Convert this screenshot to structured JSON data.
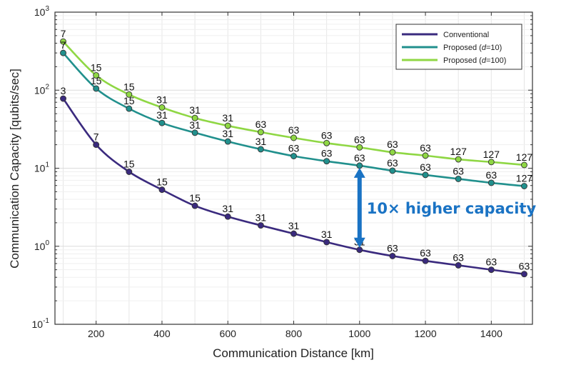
{
  "chart_data": {
    "type": "line",
    "xlabel": "Communication Distance [km]",
    "ylabel": "Communication Capacity  [qubits/sec]",
    "xlim": [
      75,
      1525
    ],
    "ylim_log10": [
      -1,
      3
    ],
    "y_scale": "log",
    "grid": true,
    "legend_position": "top-right",
    "x_ticks": [
      200,
      400,
      600,
      800,
      1000,
      1200,
      1400
    ],
    "x_tick_labels": [
      "200",
      "400",
      "600",
      "800",
      "1000",
      "1200",
      "1400"
    ],
    "y_ticks": [
      {
        "base": "10",
        "exp": "-1",
        "value": 0.1
      },
      {
        "base": "10",
        "exp": "0",
        "value": 1
      },
      {
        "base": "10",
        "exp": "1",
        "value": 10
      },
      {
        "base": "10",
        "exp": "2",
        "value": 100
      },
      {
        "base": "10",
        "exp": "3",
        "value": 1000
      }
    ],
    "x": [
      100,
      200,
      300,
      400,
      500,
      600,
      700,
      800,
      900,
      1000,
      1100,
      1200,
      1300,
      1400,
      1500
    ],
    "series": [
      {
        "name": "Conventional",
        "color": "#3a2a7e",
        "values": [
          78,
          20,
          9,
          5.3,
          3.3,
          2.4,
          1.85,
          1.45,
          1.13,
          0.9,
          0.75,
          0.65,
          0.57,
          0.5,
          0.44
        ],
        "point_labels": [
          "3",
          "7",
          "15",
          "15",
          "15",
          "31",
          "31",
          "31",
          "31",
          "31",
          "63",
          "63",
          "63",
          "63",
          "63"
        ]
      },
      {
        "name": "Proposed (d=10)",
        "color": "#21908d",
        "values": [
          300,
          105,
          58,
          38,
          28.5,
          22,
          17.5,
          14.3,
          12.3,
          10.8,
          9.3,
          8.2,
          7.3,
          6.5,
          5.9
        ],
        "point_labels": [
          "7",
          "15",
          "15",
          "31",
          "31",
          "31",
          "31",
          "63",
          "63",
          "63",
          "63",
          "63",
          "63",
          "63",
          "127"
        ]
      },
      {
        "name": "Proposed (d=100)",
        "color": "#8fd744",
        "values": [
          420,
          155,
          88,
          60,
          44,
          35,
          29,
          24.5,
          21,
          18.5,
          16,
          14.5,
          13,
          12,
          11
        ],
        "point_labels": [
          "7",
          "15",
          "15",
          "31",
          "31",
          "31",
          "63",
          "63",
          "63",
          "63",
          "63",
          "63",
          "127",
          "127",
          "127"
        ]
      }
    ],
    "legend": [
      {
        "prefix": "Conventional",
        "italic": "",
        "suffix": ""
      },
      {
        "prefix": "Proposed (",
        "italic": "d",
        "suffix": "=10)"
      },
      {
        "prefix": "Proposed (",
        "italic": "d",
        "suffix": "=100)"
      }
    ],
    "annotation": {
      "text": "10× higher capacity",
      "color": "#1a73c4",
      "arrow_x": 1000,
      "arrow_from": 0.9,
      "arrow_to": 10.8
    }
  }
}
